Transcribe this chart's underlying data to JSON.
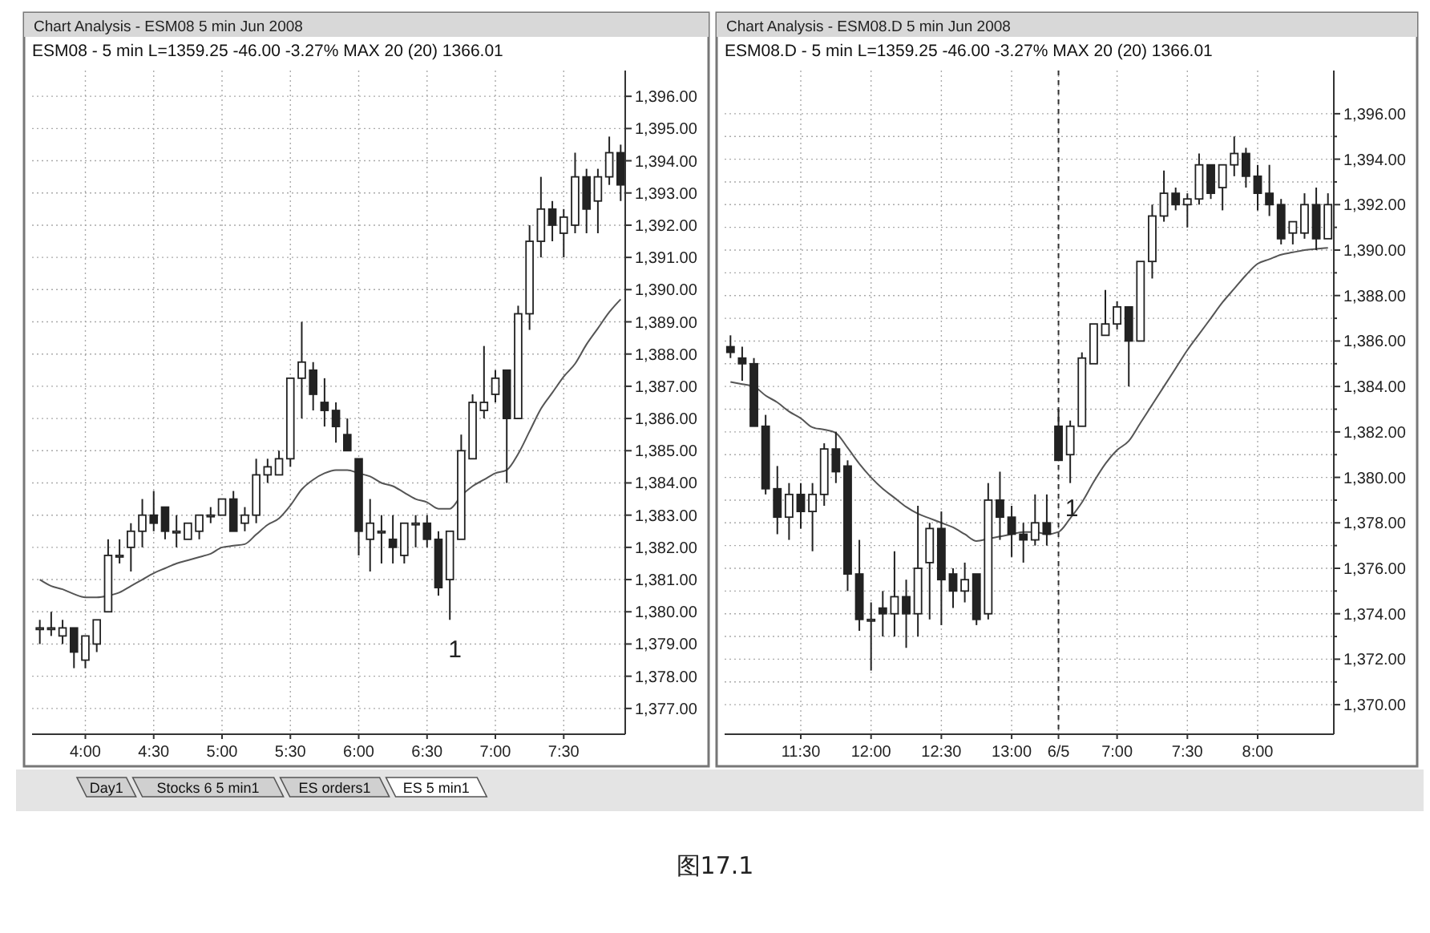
{
  "chart_data": [
    {
      "type": "candlestick",
      "title": "Chart Analysis - ESM08 5 min Jun 2008",
      "subtitle": "ESM08 - 5 min L=1359.25 -46.00 -3.27% MAX 20 (20)   1366.01",
      "x": [
        3.6667,
        3.75,
        3.8333,
        3.9167,
        4,
        4.0833,
        4.1667,
        4.25,
        4.3333,
        4.4167,
        4.5,
        4.5833,
        4.6667,
        4.75,
        4.8333,
        4.9167,
        5,
        5.0833,
        5.1667,
        5.25,
        5.3333,
        5.4167,
        5.5,
        5.5833,
        5.6667,
        5.75,
        5.8333,
        5.9167,
        6,
        6.0833,
        6.1667,
        6.25,
        6.3333,
        6.4167,
        6.5,
        6.5833,
        6.6667,
        6.75,
        6.8333,
        6.9167,
        7,
        7.0833,
        7.1667,
        7.25,
        7.3333,
        7.4167,
        7.5,
        7.5833,
        7.6667,
        7.75,
        7.8333,
        7.9167
      ],
      "ohlc": [
        [
          1379.5,
          1379.75,
          1379,
          1379.5
        ],
        [
          1379.5,
          1380,
          1379.25,
          1379.5
        ],
        [
          1379.25,
          1379.75,
          1379,
          1379.5
        ],
        [
          1379.5,
          1379.5,
          1378.25,
          1378.75
        ],
        [
          1378.5,
          1379.25,
          1378.25,
          1379.25
        ],
        [
          1379,
          1379.75,
          1378.75,
          1379.75
        ],
        [
          1380,
          1382.25,
          1380,
          1381.75
        ],
        [
          1381.75,
          1382.25,
          1381.5,
          1381.75
        ],
        [
          1382,
          1382.75,
          1381.25,
          1382.5
        ],
        [
          1382.5,
          1383.5,
          1382,
          1383
        ],
        [
          1383,
          1383.75,
          1382.5,
          1382.75
        ],
        [
          1383.25,
          1383.25,
          1382.25,
          1382.5
        ],
        [
          1382.5,
          1383,
          1382,
          1382.5
        ],
        [
          1382.25,
          1382.75,
          1382.25,
          1382.75
        ],
        [
          1382.5,
          1383,
          1382.25,
          1383
        ],
        [
          1383,
          1383.25,
          1382.75,
          1383
        ],
        [
          1383,
          1383.5,
          1383,
          1383.5
        ],
        [
          1383.5,
          1383.75,
          1382.5,
          1382.5
        ],
        [
          1382.75,
          1383.25,
          1382.5,
          1383
        ],
        [
          1383,
          1384.75,
          1382.75,
          1384.25
        ],
        [
          1384.25,
          1384.75,
          1384,
          1384.5
        ],
        [
          1384.25,
          1385,
          1384.25,
          1384.75
        ],
        [
          1384.75,
          1387.25,
          1384.5,
          1387.25
        ],
        [
          1387.25,
          1389,
          1386,
          1387.75
        ],
        [
          1387.5,
          1387.75,
          1386.25,
          1386.75
        ],
        [
          1386.5,
          1387.25,
          1385.75,
          1386.25
        ],
        [
          1386.25,
          1386.5,
          1385.25,
          1385.75
        ],
        [
          1385.5,
          1386,
          1385,
          1385
        ],
        [
          1384.75,
          1384.75,
          1381.75,
          1382.5
        ],
        [
          1382.25,
          1383.5,
          1381.25,
          1382.75
        ],
        [
          1382.5,
          1383,
          1381.5,
          1382.5
        ],
        [
          1382.25,
          1383,
          1381.5,
          1382
        ],
        [
          1381.75,
          1382.75,
          1381.5,
          1382.75
        ],
        [
          1382.75,
          1383,
          1382,
          1382.75
        ],
        [
          1382.75,
          1383,
          1382,
          1382.25
        ],
        [
          1382.25,
          1382.5,
          1380.5,
          1380.75
        ],
        [
          1381,
          1382.5,
          1379.75,
          1382.5
        ],
        [
          1382.25,
          1385.5,
          1382.25,
          1385
        ],
        [
          1384.75,
          1386.75,
          1384.75,
          1386.5
        ],
        [
          1386.25,
          1388.25,
          1386,
          1386.5
        ],
        [
          1386.75,
          1387.5,
          1386.5,
          1387.25
        ],
        [
          1387.5,
          1387.5,
          1384,
          1386
        ],
        [
          1386,
          1389.5,
          1386,
          1389.25
        ],
        [
          1389.25,
          1392,
          1388.75,
          1391.5
        ],
        [
          1391.5,
          1393.5,
          1391,
          1392.5
        ],
        [
          1392.5,
          1392.75,
          1391.5,
          1392
        ],
        [
          1391.75,
          1392.5,
          1391,
          1392.25
        ],
        [
          1392,
          1394.25,
          1391.75,
          1393.5
        ],
        [
          1393.5,
          1393.75,
          1391.75,
          1392.5
        ],
        [
          1392.75,
          1393.75,
          1391.75,
          1393.5
        ],
        [
          1393.5,
          1394.75,
          1393.25,
          1394.25
        ],
        [
          1394.25,
          1394.5,
          1392.75,
          1393.25
        ]
      ],
      "series": [
        {
          "type": "line",
          "color": "#555555",
          "values": [
            1381,
            1380.8,
            1380.7,
            1380.55,
            1380.45,
            1380.45,
            1380.5,
            1380.6,
            1380.8,
            1381,
            1381.2,
            1381.35,
            1381.5,
            1381.6,
            1381.7,
            1381.8,
            1382,
            1382.05,
            1382.1,
            1382.4,
            1382.7,
            1382.9,
            1383.3,
            1383.8,
            1384.1,
            1384.3,
            1384.4,
            1384.4,
            1384.3,
            1384.2,
            1384,
            1383.9,
            1383.7,
            1383.5,
            1383.4,
            1383.2,
            1383.2,
            1383.6,
            1383.9,
            1384.1,
            1384.3,
            1384.4,
            1384.9,
            1385.6,
            1386.3,
            1386.8,
            1387.3,
            1387.7,
            1388.3,
            1388.8,
            1389.3,
            1389.7
          ]
        }
      ],
      "xlim": [
        3.61,
        7.95
      ],
      "xticks": [
        {
          "value": 4,
          "label": "4:00"
        },
        {
          "value": 4.5,
          "label": "4:30"
        },
        {
          "value": 5,
          "label": "5:00"
        },
        {
          "value": 5.5,
          "label": "5:30"
        },
        {
          "value": 6,
          "label": "6:00"
        },
        {
          "value": 6.5,
          "label": "6:30"
        },
        {
          "value": 7,
          "label": "7:00"
        },
        {
          "value": 7.5,
          "label": "7:30"
        }
      ],
      "ylim": [
        1376.2,
        1396.8
      ],
      "yticks": [
        {
          "value": 1377,
          "label": "1,377.00"
        },
        {
          "value": 1378,
          "label": "1,378.00"
        },
        {
          "value": 1379,
          "label": "1,379.00"
        },
        {
          "value": 1380,
          "label": "1,380.00"
        },
        {
          "value": 1381,
          "label": "1,381.00"
        },
        {
          "value": 1382,
          "label": "1,382.00"
        },
        {
          "value": 1383,
          "label": "1,383.00"
        },
        {
          "value": 1384,
          "label": "1,384.00"
        },
        {
          "value": 1385,
          "label": "1,385.00"
        },
        {
          "value": 1386,
          "label": "1,386.00"
        },
        {
          "value": 1387,
          "label": "1,387.00"
        },
        {
          "value": 1388,
          "label": "1,388.00"
        },
        {
          "value": 1389,
          "label": "1,389.00"
        },
        {
          "value": 1390,
          "label": "1,390.00"
        },
        {
          "value": 1391,
          "label": "1,391.00"
        },
        {
          "value": 1392,
          "label": "1,392.00"
        },
        {
          "value": 1393,
          "label": "1,393.00"
        },
        {
          "value": 1394,
          "label": "1,394.00"
        },
        {
          "value": 1395,
          "label": "1,395.00"
        },
        {
          "value": 1396,
          "label": "1,396.00"
        }
      ],
      "grid": true,
      "annotations": [
        "1",
        "Day1",
        "Stocks 6 5 min1",
        "ES orders1",
        "ES 5 min1",
        "图17.1"
      ]
    },
    {
      "type": "candlestick",
      "title": "Chart Analysis - ESM08.D 5 min Jun 2008",
      "subtitle": "ESM08.D - 5 min L=1359.25 -46.00 -3.27% MAX 20 (20)   1366.01",
      "categories": [
        null,
        null,
        null,
        null,
        null,
        null,
        "11:30",
        null,
        null,
        null,
        null,
        null,
        "12:00",
        null,
        null,
        null,
        null,
        null,
        "12:30",
        null,
        null,
        null,
        null,
        null,
        "13:00",
        null,
        null,
        null,
        "6/5",
        null,
        null,
        null,
        null,
        "7:00",
        null,
        null,
        null,
        null,
        null,
        "7:30",
        null,
        null,
        null,
        null,
        null,
        "8:00",
        null,
        null,
        null,
        null,
        null,
        null
      ],
      "ohlc": [
        [
          1385.75,
          1386.25,
          1385.25,
          1385.5
        ],
        [
          1385.25,
          1385.75,
          1384.25,
          1385
        ],
        [
          1385,
          1385.25,
          1382.25,
          1382.25
        ],
        [
          1382.25,
          1382.75,
          1379.25,
          1379.5
        ],
        [
          1379.5,
          1380.5,
          1377.5,
          1378.25
        ],
        [
          1378.25,
          1379.75,
          1377.25,
          1379.25
        ],
        [
          1379.25,
          1379.75,
          1377.75,
          1378.5
        ],
        [
          1378.5,
          1379.75,
          1376.75,
          1379.25
        ],
        [
          1379.25,
          1381.5,
          1378.75,
          1381.25
        ],
        [
          1381.25,
          1382,
          1379.75,
          1380.25
        ],
        [
          1380.5,
          1380.75,
          1375,
          1375.75
        ],
        [
          1375.75,
          1377.25,
          1373.25,
          1373.75
        ],
        [
          1373.75,
          1374.5,
          1371.5,
          1373.75
        ],
        [
          1374.25,
          1375,
          1373,
          1374
        ],
        [
          1374,
          1376.75,
          1373,
          1374.75
        ],
        [
          1374.75,
          1375.5,
          1372.5,
          1374
        ],
        [
          1374,
          1378.75,
          1373,
          1376
        ],
        [
          1376.25,
          1378,
          1373.75,
          1377.75
        ],
        [
          1377.75,
          1378.5,
          1373.5,
          1375.5
        ],
        [
          1375.75,
          1376,
          1374.25,
          1375
        ],
        [
          1375,
          1376.25,
          1374.5,
          1375.5
        ],
        [
          1375.75,
          1375.75,
          1373.5,
          1373.75
        ],
        [
          1374,
          1379.75,
          1373.75,
          1379
        ],
        [
          1379,
          1380.25,
          1377.25,
          1378.25
        ],
        [
          1378.25,
          1378.75,
          1376.5,
          1377.5
        ],
        [
          1377.5,
          1378,
          1376.25,
          1377.25
        ],
        [
          1377.25,
          1379.25,
          1377,
          1378
        ],
        [
          1378,
          1379.25,
          1377,
          1377.5
        ],
        [
          1382.25,
          1383,
          1380.75,
          1380.75
        ],
        [
          1381,
          1382.5,
          1379.75,
          1382.25
        ],
        [
          1382.25,
          1385.5,
          1382.25,
          1385.25
        ],
        [
          1385,
          1386.75,
          1385,
          1386.75
        ],
        [
          1386.25,
          1388.25,
          1386.25,
          1386.75
        ],
        [
          1386.75,
          1387.75,
          1386.5,
          1387.5
        ],
        [
          1387.5,
          1387.5,
          1384,
          1386
        ],
        [
          1386,
          1389.5,
          1386,
          1389.5
        ],
        [
          1389.5,
          1392,
          1388.75,
          1391.5
        ],
        [
          1391.5,
          1393.5,
          1391.25,
          1392.5
        ],
        [
          1392.5,
          1392.75,
          1391.75,
          1392
        ],
        [
          1392,
          1392.5,
          1391,
          1392.25
        ],
        [
          1392.25,
          1394.25,
          1392,
          1393.75
        ],
        [
          1393.75,
          1393.75,
          1392.25,
          1392.5
        ],
        [
          1392.75,
          1393.75,
          1391.75,
          1393.75
        ],
        [
          1393.75,
          1395,
          1393.25,
          1394.25
        ],
        [
          1394.25,
          1394.5,
          1392.75,
          1393.25
        ],
        [
          1393.25,
          1393.75,
          1391.75,
          1392.5
        ],
        [
          1392.5,
          1393.75,
          1391.5,
          1392
        ],
        [
          1392,
          1392.25,
          1390.25,
          1390.5
        ],
        [
          1390.75,
          1391.25,
          1390.25,
          1391.25
        ],
        [
          1390.75,
          1392.5,
          1390.5,
          1392
        ],
        [
          1392,
          1392.75,
          1390,
          1390.5
        ],
        [
          1390.5,
          1392.5,
          1390.5,
          1392
        ]
      ],
      "series": [
        {
          "type": "line",
          "color": "#555555",
          "values": [
            1384.2,
            1384.1,
            1384,
            1383.6,
            1383.3,
            1382.9,
            1382.6,
            1382.2,
            1382.1,
            1381.95,
            1381.3,
            1380.6,
            1380,
            1379.5,
            1379.1,
            1378.7,
            1378.4,
            1378.2,
            1378,
            1377.8,
            1377.5,
            1377.2,
            1377.3,
            1377.4,
            1377.5,
            1377.6,
            1377.6,
            1377.5,
            1377.6,
            1378.2,
            1378.9,
            1379.8,
            1380.6,
            1381.2,
            1381.6,
            1382.4,
            1383.2,
            1384,
            1384.8,
            1385.6,
            1386.3,
            1387,
            1387.7,
            1388.3,
            1388.9,
            1389.4,
            1389.6,
            1389.8,
            1389.9,
            1390,
            1390.05,
            1390.1
          ]
        }
      ],
      "ylim": [
        1368.7,
        1397.9
      ],
      "yticks": [
        {
          "value": 1370,
          "label": "1,370.00"
        },
        {
          "value": 1371,
          "label": null
        },
        {
          "value": 1372,
          "label": "1,372.00"
        },
        {
          "value": 1373,
          "label": null
        },
        {
          "value": 1374,
          "label": "1,374.00"
        },
        {
          "value": 1375,
          "label": null
        },
        {
          "value": 1376,
          "label": "1,376.00"
        },
        {
          "value": 1377,
          "label": null
        },
        {
          "value": 1378,
          "label": "1,378.00"
        },
        {
          "value": 1379,
          "label": null
        },
        {
          "value": 1380,
          "label": "1,380.00"
        },
        {
          "value": 1381,
          "label": null
        },
        {
          "value": 1382,
          "label": "1,382.00"
        },
        {
          "value": 1383,
          "label": null
        },
        {
          "value": 1384,
          "label": "1,384.00"
        },
        {
          "value": 1385,
          "label": null
        },
        {
          "value": 1386,
          "label": "1,386.00"
        },
        {
          "value": 1387,
          "label": null
        },
        {
          "value": 1388,
          "label": "1,388.00"
        },
        {
          "value": 1389,
          "label": null
        },
        {
          "value": 1390,
          "label": "1,390.00"
        },
        {
          "value": 1391,
          "label": null
        },
        {
          "value": 1392,
          "label": "1,392.00"
        },
        {
          "value": 1393,
          "label": null
        },
        {
          "value": 1394,
          "label": "1,394.00"
        },
        {
          "value": 1395,
          "label": null
        },
        {
          "value": 1396,
          "label": "1,396.00"
        }
      ],
      "grid": true,
      "ref_lines": [
        {
          "axis": "x",
          "value": "6/5",
          "line_style": "dashed"
        }
      ],
      "annotations": [
        "1"
      ]
    }
  ]
}
